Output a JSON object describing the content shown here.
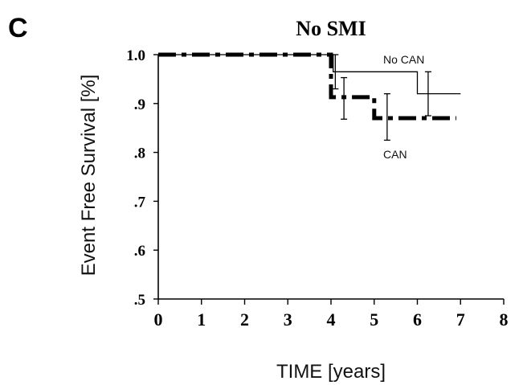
{
  "panel_label": "C",
  "chart_data": {
    "type": "line",
    "title": "No SMI",
    "xlabel": "TIME  [years]",
    "ylabel": "Event Free Survival [%]",
    "xlim": [
      0,
      8
    ],
    "ylim": [
      0.5,
      1.0
    ],
    "x_ticks": [
      0,
      1,
      2,
      3,
      4,
      5,
      6,
      7,
      8
    ],
    "x_tick_labels": [
      "0",
      "1",
      "2",
      "3",
      "4",
      "5",
      "6",
      "7",
      "8"
    ],
    "y_ticks": [
      0.5,
      0.6,
      0.7,
      0.8,
      0.9,
      1.0
    ],
    "y_tick_labels": [
      ".5",
      ".6",
      ".7",
      ".8",
      ".9",
      "1.0"
    ],
    "grid": false,
    "series": [
      {
        "name": "No CAN",
        "style": "thin-solid",
        "color": "#000000",
        "points": [
          [
            0,
            1.0
          ],
          [
            4.05,
            1.0
          ],
          [
            4.05,
            0.965
          ],
          [
            6.0,
            0.965
          ],
          [
            6.0,
            0.92
          ],
          [
            7.0,
            0.92
          ]
        ],
        "error_bars": [
          {
            "x": 4.1,
            "low": 0.93,
            "high": 1.0
          },
          {
            "x": 6.25,
            "low": 0.875,
            "high": 0.965
          }
        ]
      },
      {
        "name": "CAN",
        "style": "thick-dash-dot",
        "color": "#000000",
        "points": [
          [
            0,
            1.0
          ],
          [
            4.0,
            1.0
          ],
          [
            4.0,
            0.913
          ],
          [
            5.0,
            0.913
          ],
          [
            5.0,
            0.87
          ],
          [
            6.9,
            0.87
          ]
        ],
        "error_bars": [
          {
            "x": 4.3,
            "low": 0.868,
            "high": 0.953
          },
          {
            "x": 5.3,
            "low": 0.825,
            "high": 0.92
          }
        ]
      }
    ]
  }
}
